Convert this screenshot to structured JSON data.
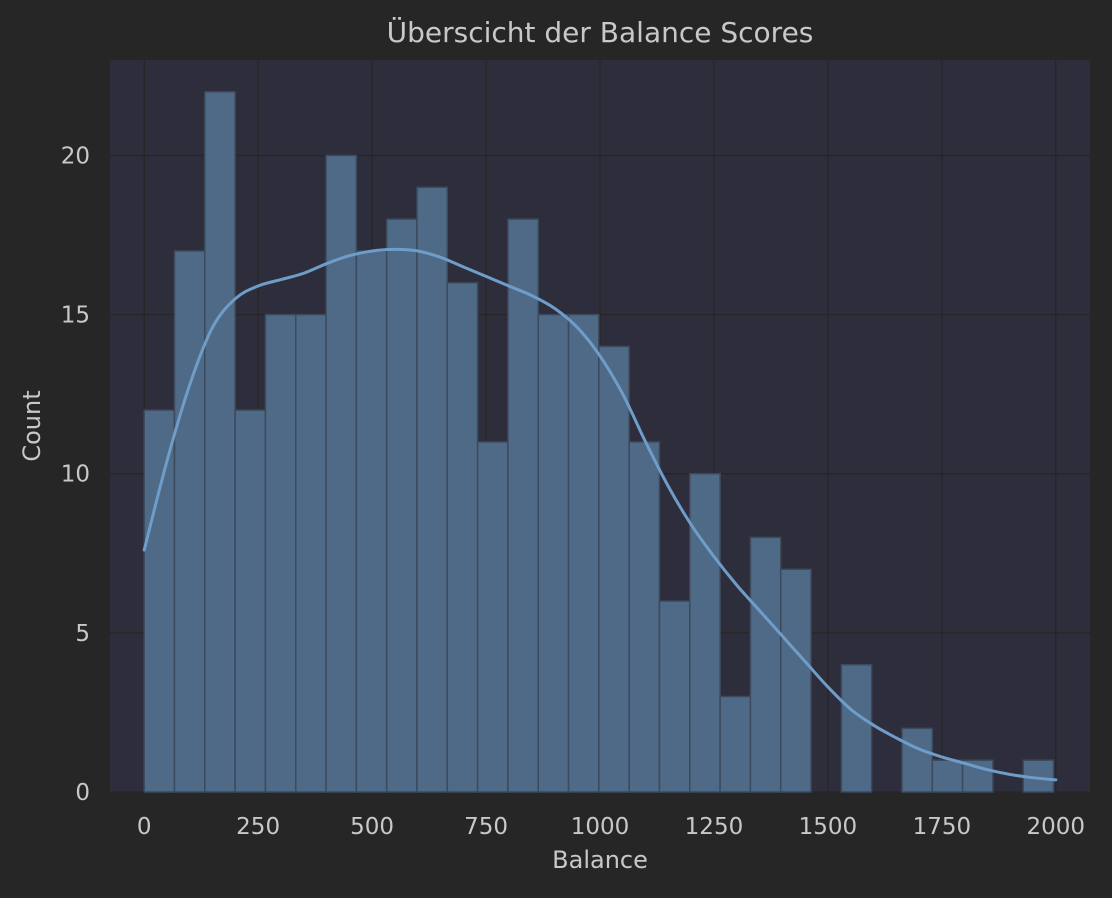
{
  "chart_data": {
    "type": "bar",
    "title": "Überscicht der Balance Scores",
    "xlabel": "Balance",
    "ylabel": "Count",
    "xlim": [
      -75,
      2075
    ],
    "ylim": [
      0,
      23
    ],
    "grid": true,
    "xticks": [
      0,
      250,
      500,
      750,
      1000,
      1250,
      1500,
      1750,
      2000
    ],
    "yticks": [
      0,
      5,
      10,
      15,
      20
    ],
    "bin_width": 66.5,
    "bins": [
      {
        "x0": 0,
        "count": 12
      },
      {
        "x0": 66.5,
        "count": 17
      },
      {
        "x0": 133,
        "count": 22
      },
      {
        "x0": 199.5,
        "count": 12
      },
      {
        "x0": 266,
        "count": 15
      },
      {
        "x0": 332.5,
        "count": 15
      },
      {
        "x0": 399,
        "count": 20
      },
      {
        "x0": 465.5,
        "count": 17
      },
      {
        "x0": 532,
        "count": 18
      },
      {
        "x0": 598.5,
        "count": 19
      },
      {
        "x0": 665,
        "count": 16
      },
      {
        "x0": 731.5,
        "count": 11
      },
      {
        "x0": 798,
        "count": 18
      },
      {
        "x0": 864.5,
        "count": 15
      },
      {
        "x0": 931,
        "count": 15
      },
      {
        "x0": 997.5,
        "count": 14
      },
      {
        "x0": 1064,
        "count": 11
      },
      {
        "x0": 1130.5,
        "count": 6
      },
      {
        "x0": 1197,
        "count": 10
      },
      {
        "x0": 1263.5,
        "count": 3
      },
      {
        "x0": 1330,
        "count": 8
      },
      {
        "x0": 1396.5,
        "count": 7
      },
      {
        "x0": 1463,
        "count": 0
      },
      {
        "x0": 1529.5,
        "count": 4
      },
      {
        "x0": 1596,
        "count": 0
      },
      {
        "x0": 1662.5,
        "count": 2
      },
      {
        "x0": 1729,
        "count": 1
      },
      {
        "x0": 1795.5,
        "count": 1
      },
      {
        "x0": 1862,
        "count": 0
      },
      {
        "x0": 1928.5,
        "count": 1
      }
    ],
    "kde": {
      "x": [
        0,
        50,
        100,
        150,
        200,
        250,
        300,
        350,
        400,
        450,
        500,
        550,
        600,
        650,
        700,
        750,
        800,
        850,
        900,
        950,
        1000,
        1050,
        1100,
        1150,
        1200,
        1250,
        1300,
        1350,
        1400,
        1450,
        1500,
        1550,
        1600,
        1650,
        1700,
        1750,
        1800,
        1850,
        1900,
        1950,
        2000
      ],
      "y": [
        7.6,
        10.4,
        12.8,
        14.6,
        15.5,
        15.9,
        16.1,
        16.3,
        16.6,
        16.85,
        17.0,
        17.05,
        17.0,
        16.8,
        16.5,
        16.2,
        15.9,
        15.6,
        15.2,
        14.6,
        13.7,
        12.5,
        11.0,
        9.6,
        8.4,
        7.4,
        6.5,
        5.7,
        4.9,
        4.1,
        3.3,
        2.6,
        2.1,
        1.7,
        1.35,
        1.1,
        0.9,
        0.7,
        0.55,
        0.45,
        0.38
      ]
    },
    "colors": {
      "figure_bg": "#262626",
      "axes_bg": "#2e2d3b",
      "grid": "#262626",
      "bar_fill": "#4f6a86",
      "bar_edge": "#3b4a5c",
      "kde_line": "#6f9dc9",
      "text": "#c8c8c8"
    }
  }
}
